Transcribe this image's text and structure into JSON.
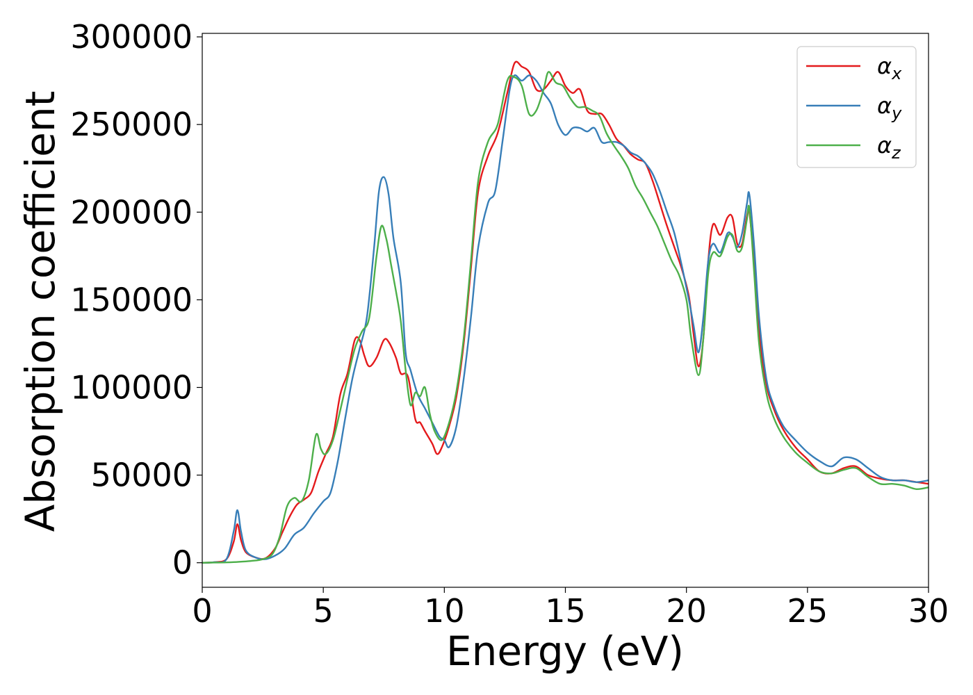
{
  "chart_data": {
    "type": "line",
    "xlabel": "Energy (eV)",
    "ylabel": "Absorption coefficient",
    "xlim": [
      0,
      30
    ],
    "ylim": [
      -14000,
      302000
    ],
    "xticks": [
      0,
      5,
      10,
      15,
      20,
      25,
      30
    ],
    "xtick_labels": [
      "0",
      "5",
      "10",
      "15",
      "20",
      "25",
      "30"
    ],
    "yticks": [
      0,
      50000,
      100000,
      150000,
      200000,
      250000,
      300000
    ],
    "ytick_labels": [
      "0",
      "50000",
      "100000",
      "150000",
      "200000",
      "250000",
      "300000"
    ],
    "grid": false,
    "legend_position": "top-right",
    "series": [
      {
        "name": "αx",
        "label_main": "α",
        "label_sub": "x",
        "color": "#e41a1c",
        "points": [
          [
            0,
            0
          ],
          [
            0.5,
            300
          ],
          [
            1.0,
            2000
          ],
          [
            1.3,
            12000
          ],
          [
            1.45,
            22000
          ],
          [
            1.6,
            13000
          ],
          [
            1.8,
            6000
          ],
          [
            2.2,
            3000
          ],
          [
            2.6,
            2500
          ],
          [
            3.0,
            8000
          ],
          [
            3.3,
            17000
          ],
          [
            3.6,
            26000
          ],
          [
            3.9,
            33000
          ],
          [
            4.2,
            36000
          ],
          [
            4.5,
            40000
          ],
          [
            4.8,
            52000
          ],
          [
            5.1,
            62000
          ],
          [
            5.4,
            72000
          ],
          [
            5.7,
            96000
          ],
          [
            6.0,
            108000
          ],
          [
            6.3,
            127000
          ],
          [
            6.5,
            127000
          ],
          [
            6.7,
            118000
          ],
          [
            6.9,
            112000
          ],
          [
            7.2,
            117000
          ],
          [
            7.5,
            127000
          ],
          [
            7.7,
            126000
          ],
          [
            8.0,
            117000
          ],
          [
            8.2,
            108000
          ],
          [
            8.5,
            106000
          ],
          [
            8.8,
            82000
          ],
          [
            9.0,
            80000
          ],
          [
            9.2,
            75000
          ],
          [
            9.5,
            68000
          ],
          [
            9.7,
            62000
          ],
          [
            9.9,
            66000
          ],
          [
            10.2,
            78000
          ],
          [
            10.5,
            95000
          ],
          [
            10.8,
            125000
          ],
          [
            11.1,
            168000
          ],
          [
            11.4,
            212000
          ],
          [
            11.8,
            232000
          ],
          [
            12.2,
            245000
          ],
          [
            12.6,
            268000
          ],
          [
            12.9,
            285000
          ],
          [
            13.2,
            283000
          ],
          [
            13.5,
            280000
          ],
          [
            13.8,
            270000
          ],
          [
            14.1,
            270000
          ],
          [
            14.4,
            275000
          ],
          [
            14.7,
            280000
          ],
          [
            15.0,
            272000
          ],
          [
            15.3,
            268000
          ],
          [
            15.6,
            270000
          ],
          [
            15.9,
            258000
          ],
          [
            16.2,
            256000
          ],
          [
            16.5,
            256000
          ],
          [
            16.8,
            250000
          ],
          [
            17.1,
            242000
          ],
          [
            17.4,
            238000
          ],
          [
            17.7,
            233000
          ],
          [
            18.0,
            230000
          ],
          [
            18.3,
            228000
          ],
          [
            18.6,
            218000
          ],
          [
            18.9,
            205000
          ],
          [
            19.2,
            192000
          ],
          [
            19.5,
            180000
          ],
          [
            19.8,
            168000
          ],
          [
            20.1,
            152000
          ],
          [
            20.3,
            130000
          ],
          [
            20.5,
            112000
          ],
          [
            20.7,
            128000
          ],
          [
            20.9,
            172000
          ],
          [
            21.1,
            193000
          ],
          [
            21.4,
            187000
          ],
          [
            21.7,
            197000
          ],
          [
            21.9,
            197000
          ],
          [
            22.1,
            182000
          ],
          [
            22.3,
            182000
          ],
          [
            22.5,
            198000
          ],
          [
            22.6,
            200000
          ],
          [
            22.8,
            170000
          ],
          [
            23.0,
            132000
          ],
          [
            23.3,
            102000
          ],
          [
            23.6,
            88000
          ],
          [
            24.0,
            76000
          ],
          [
            24.5,
            66000
          ],
          [
            25.0,
            59000
          ],
          [
            25.5,
            52000
          ],
          [
            26.0,
            51000
          ],
          [
            26.5,
            54000
          ],
          [
            27.0,
            55000
          ],
          [
            27.5,
            50000
          ],
          [
            28.0,
            48000
          ],
          [
            28.5,
            47000
          ],
          [
            29.0,
            47000
          ],
          [
            29.5,
            46000
          ],
          [
            30.0,
            45000
          ]
        ]
      },
      {
        "name": "αy",
        "label_main": "α",
        "label_sub": "y",
        "color": "#377eb8",
        "points": [
          [
            0,
            0
          ],
          [
            0.5,
            300
          ],
          [
            1.0,
            2000
          ],
          [
            1.3,
            18000
          ],
          [
            1.45,
            30000
          ],
          [
            1.6,
            18000
          ],
          [
            1.8,
            7000
          ],
          [
            2.2,
            3000
          ],
          [
            2.6,
            2000
          ],
          [
            3.0,
            4000
          ],
          [
            3.4,
            8000
          ],
          [
            3.8,
            16000
          ],
          [
            4.2,
            20000
          ],
          [
            4.6,
            28000
          ],
          [
            5.0,
            35000
          ],
          [
            5.3,
            40000
          ],
          [
            5.6,
            58000
          ],
          [
            5.9,
            82000
          ],
          [
            6.2,
            105000
          ],
          [
            6.5,
            122000
          ],
          [
            6.8,
            140000
          ],
          [
            7.1,
            180000
          ],
          [
            7.3,
            212000
          ],
          [
            7.5,
            220000
          ],
          [
            7.7,
            210000
          ],
          [
            7.9,
            185000
          ],
          [
            8.2,
            160000
          ],
          [
            8.4,
            120000
          ],
          [
            8.6,
            110000
          ],
          [
            8.9,
            96000
          ],
          [
            9.2,
            88000
          ],
          [
            9.5,
            80000
          ],
          [
            9.8,
            72000
          ],
          [
            10.0,
            70000
          ],
          [
            10.2,
            66000
          ],
          [
            10.5,
            78000
          ],
          [
            10.8,
            105000
          ],
          [
            11.1,
            140000
          ],
          [
            11.4,
            180000
          ],
          [
            11.8,
            205000
          ],
          [
            12.1,
            212000
          ],
          [
            12.4,
            240000
          ],
          [
            12.7,
            270000
          ],
          [
            12.9,
            278000
          ],
          [
            13.2,
            275000
          ],
          [
            13.5,
            278000
          ],
          [
            13.8,
            275000
          ],
          [
            14.1,
            268000
          ],
          [
            14.4,
            262000
          ],
          [
            14.7,
            250000
          ],
          [
            15.0,
            244000
          ],
          [
            15.3,
            248000
          ],
          [
            15.6,
            248000
          ],
          [
            15.9,
            246000
          ],
          [
            16.2,
            248000
          ],
          [
            16.5,
            240000
          ],
          [
            16.8,
            240000
          ],
          [
            17.1,
            240000
          ],
          [
            17.4,
            238000
          ],
          [
            17.7,
            234000
          ],
          [
            18.0,
            232000
          ],
          [
            18.3,
            228000
          ],
          [
            18.6,
            222000
          ],
          [
            18.9,
            212000
          ],
          [
            19.2,
            200000
          ],
          [
            19.5,
            188000
          ],
          [
            19.8,
            170000
          ],
          [
            20.1,
            150000
          ],
          [
            20.3,
            135000
          ],
          [
            20.5,
            120000
          ],
          [
            20.7,
            140000
          ],
          [
            20.9,
            172000
          ],
          [
            21.1,
            182000
          ],
          [
            21.4,
            177000
          ],
          [
            21.7,
            188000
          ],
          [
            21.9,
            186000
          ],
          [
            22.1,
            180000
          ],
          [
            22.3,
            188000
          ],
          [
            22.5,
            205000
          ],
          [
            22.6,
            210000
          ],
          [
            22.8,
            180000
          ],
          [
            23.0,
            140000
          ],
          [
            23.3,
            105000
          ],
          [
            23.6,
            90000
          ],
          [
            24.0,
            78000
          ],
          [
            24.5,
            70000
          ],
          [
            25.0,
            63000
          ],
          [
            25.5,
            58000
          ],
          [
            26.0,
            55000
          ],
          [
            26.5,
            60000
          ],
          [
            27.0,
            59000
          ],
          [
            27.5,
            54000
          ],
          [
            28.0,
            49000
          ],
          [
            28.5,
            47000
          ],
          [
            29.0,
            47000
          ],
          [
            29.5,
            46000
          ],
          [
            30.0,
            47000
          ]
        ]
      },
      {
        "name": "αz",
        "label_main": "α",
        "label_sub": "z",
        "color": "#4daf4a",
        "points": [
          [
            0,
            0
          ],
          [
            0.5,
            100
          ],
          [
            1.0,
            200
          ],
          [
            1.5,
            500
          ],
          [
            2.0,
            1000
          ],
          [
            2.5,
            2000
          ],
          [
            2.9,
            5000
          ],
          [
            3.2,
            15000
          ],
          [
            3.5,
            32000
          ],
          [
            3.8,
            37000
          ],
          [
            4.1,
            35000
          ],
          [
            4.4,
            47000
          ],
          [
            4.7,
            73000
          ],
          [
            4.9,
            65000
          ],
          [
            5.1,
            62000
          ],
          [
            5.4,
            70000
          ],
          [
            5.7,
            87000
          ],
          [
            6.0,
            105000
          ],
          [
            6.3,
            122000
          ],
          [
            6.6,
            132000
          ],
          [
            6.9,
            140000
          ],
          [
            7.2,
            175000
          ],
          [
            7.4,
            192000
          ],
          [
            7.6,
            185000
          ],
          [
            7.8,
            170000
          ],
          [
            8.0,
            155000
          ],
          [
            8.2,
            138000
          ],
          [
            8.4,
            110000
          ],
          [
            8.6,
            90000
          ],
          [
            8.8,
            97000
          ],
          [
            9.0,
            95000
          ],
          [
            9.2,
            100000
          ],
          [
            9.4,
            85000
          ],
          [
            9.6,
            75000
          ],
          [
            9.9,
            70000
          ],
          [
            10.2,
            80000
          ],
          [
            10.5,
            98000
          ],
          [
            10.8,
            128000
          ],
          [
            11.1,
            172000
          ],
          [
            11.4,
            218000
          ],
          [
            11.8,
            240000
          ],
          [
            12.2,
            250000
          ],
          [
            12.6,
            275000
          ],
          [
            12.9,
            277000
          ],
          [
            13.2,
            272000
          ],
          [
            13.5,
            256000
          ],
          [
            13.8,
            258000
          ],
          [
            14.1,
            270000
          ],
          [
            14.3,
            280000
          ],
          [
            14.6,
            274000
          ],
          [
            14.9,
            272000
          ],
          [
            15.2,
            265000
          ],
          [
            15.5,
            260000
          ],
          [
            15.8,
            260000
          ],
          [
            16.1,
            258000
          ],
          [
            16.4,
            255000
          ],
          [
            16.7,
            245000
          ],
          [
            17.0,
            238000
          ],
          [
            17.3,
            232000
          ],
          [
            17.6,
            225000
          ],
          [
            17.9,
            215000
          ],
          [
            18.2,
            208000
          ],
          [
            18.5,
            200000
          ],
          [
            18.8,
            192000
          ],
          [
            19.1,
            182000
          ],
          [
            19.4,
            172000
          ],
          [
            19.7,
            164000
          ],
          [
            20.0,
            150000
          ],
          [
            20.2,
            128000
          ],
          [
            20.5,
            107000
          ],
          [
            20.7,
            128000
          ],
          [
            20.9,
            165000
          ],
          [
            21.1,
            177000
          ],
          [
            21.4,
            175000
          ],
          [
            21.7,
            186000
          ],
          [
            21.9,
            187000
          ],
          [
            22.1,
            178000
          ],
          [
            22.3,
            180000
          ],
          [
            22.5,
            196000
          ],
          [
            22.6,
            202000
          ],
          [
            22.8,
            165000
          ],
          [
            23.0,
            125000
          ],
          [
            23.3,
            97000
          ],
          [
            23.6,
            83000
          ],
          [
            24.0,
            72000
          ],
          [
            24.5,
            63000
          ],
          [
            25.0,
            57000
          ],
          [
            25.5,
            52000
          ],
          [
            26.0,
            51000
          ],
          [
            26.5,
            53000
          ],
          [
            27.0,
            54000
          ],
          [
            27.5,
            49000
          ],
          [
            28.0,
            45000
          ],
          [
            28.5,
            45000
          ],
          [
            29.0,
            44000
          ],
          [
            29.5,
            42000
          ],
          [
            30.0,
            43000
          ]
        ]
      }
    ]
  }
}
